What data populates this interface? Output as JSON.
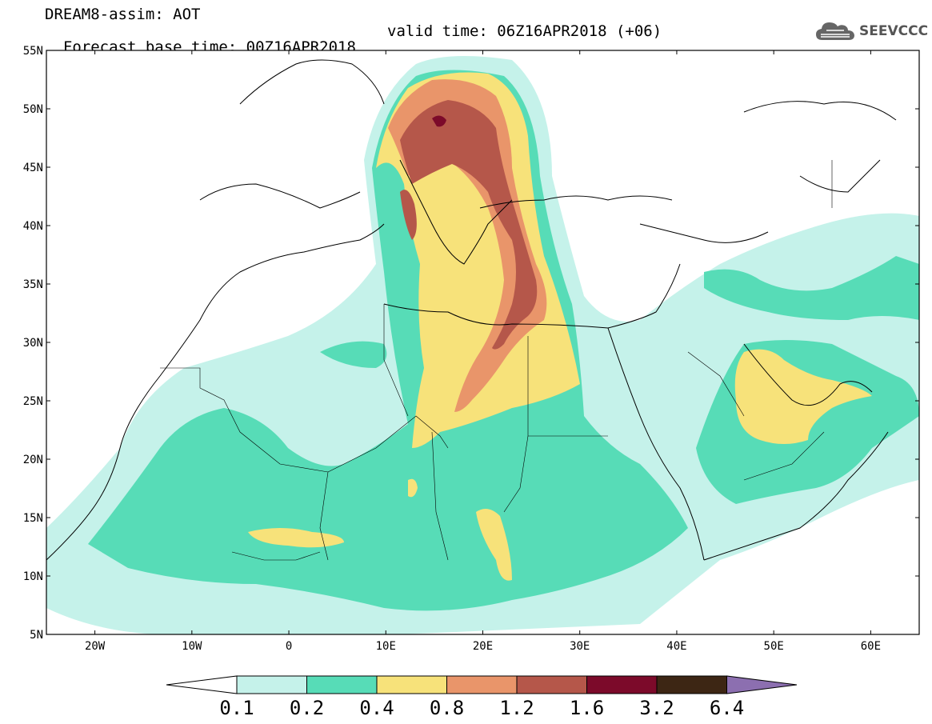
{
  "title": {
    "line1": "DREAM8-assim: AOT",
    "line2": "Forecast base time: 00Z16APR2018",
    "valid": "valid time: 06Z16APR2018 (+06)"
  },
  "logo": {
    "text": "SEEVCCC",
    "icon": "cloud-icon",
    "color": "#555555"
  },
  "map": {
    "lat_labels": [
      "55N",
      "50N",
      "45N",
      "40N",
      "35N",
      "30N",
      "25N",
      "20N",
      "15N",
      "10N",
      "5N"
    ],
    "lon_labels": [
      "20W",
      "10W",
      "0",
      "10E",
      "20E",
      "30E",
      "40E",
      "50E",
      "60E"
    ],
    "lat_range": [
      5,
      55
    ],
    "lon_range": [
      -25,
      65
    ]
  },
  "colorbar": {
    "labels": [
      "0.1",
      "0.2",
      "0.4",
      "0.8",
      "1.2",
      "1.6",
      "3.2",
      "6.4"
    ],
    "colors": [
      "#ffffff",
      "#c5f2ea",
      "#57dcb7",
      "#f7e27a",
      "#e9956a",
      "#b5574a",
      "#7c0a2a",
      "#3d2614",
      "#8c6fb0"
    ]
  }
}
